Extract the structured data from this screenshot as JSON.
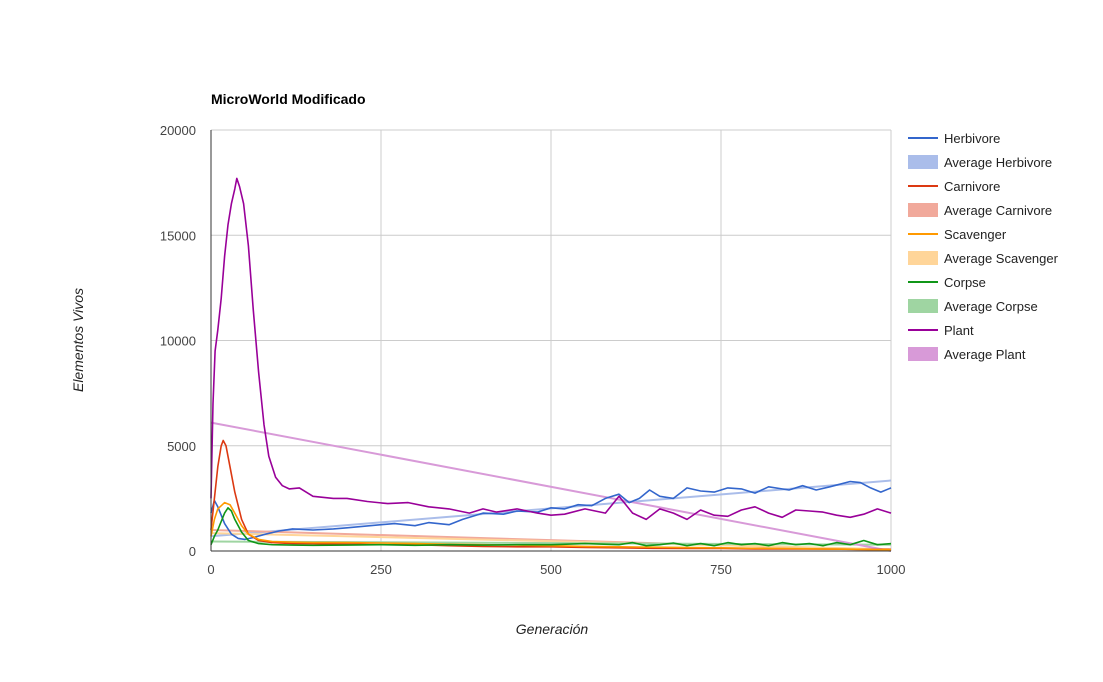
{
  "chart_data": {
    "type": "line",
    "title": "MicroWorld Modificado",
    "xlabel": "Generación",
    "ylabel": "Elementos Vivos",
    "xlim": [
      0,
      1000
    ],
    "ylim": [
      0,
      20000
    ],
    "x_ticks": [
      "0",
      "250",
      "500",
      "750",
      "1000"
    ],
    "y_ticks": [
      "0",
      "5000",
      "10000",
      "15000",
      "20000"
    ],
    "grid": true,
    "legend_position": "right",
    "series": [
      {
        "name": "Herbivore",
        "kind": "line",
        "color": "#3366cc",
        "points": [
          [
            0,
            1800
          ],
          [
            5,
            2400
          ],
          [
            10,
            2100
          ],
          [
            20,
            1300
          ],
          [
            30,
            800
          ],
          [
            40,
            600
          ],
          [
            50,
            550
          ],
          [
            60,
            620
          ],
          [
            80,
            800
          ],
          [
            100,
            950
          ],
          [
            120,
            1050
          ],
          [
            150,
            1000
          ],
          [
            180,
            1050
          ],
          [
            200,
            1100
          ],
          [
            250,
            1250
          ],
          [
            270,
            1300
          ],
          [
            300,
            1200
          ],
          [
            320,
            1350
          ],
          [
            350,
            1250
          ],
          [
            370,
            1500
          ],
          [
            400,
            1800
          ],
          [
            430,
            1750
          ],
          [
            450,
            1900
          ],
          [
            480,
            1850
          ],
          [
            500,
            2050
          ],
          [
            520,
            2000
          ],
          [
            540,
            2200
          ],
          [
            560,
            2150
          ],
          [
            580,
            2500
          ],
          [
            600,
            2700
          ],
          [
            615,
            2300
          ],
          [
            630,
            2500
          ],
          [
            645,
            2900
          ],
          [
            660,
            2600
          ],
          [
            680,
            2500
          ],
          [
            700,
            3000
          ],
          [
            720,
            2850
          ],
          [
            740,
            2800
          ],
          [
            760,
            3000
          ],
          [
            780,
            2950
          ],
          [
            790,
            2850
          ],
          [
            800,
            2750
          ],
          [
            820,
            3050
          ],
          [
            850,
            2900
          ],
          [
            870,
            3100
          ],
          [
            890,
            2900
          ],
          [
            910,
            3050
          ],
          [
            940,
            3300
          ],
          [
            955,
            3250
          ],
          [
            970,
            3000
          ],
          [
            985,
            2800
          ],
          [
            1000,
            3000
          ]
        ]
      },
      {
        "name": "Average Herbivore",
        "kind": "avg",
        "color": "#aabdea",
        "points": [
          [
            0,
            700
          ],
          [
            1000,
            3350
          ]
        ]
      },
      {
        "name": "Carnivore",
        "kind": "line",
        "color": "#dc3912",
        "points": [
          [
            0,
            1000
          ],
          [
            5,
            2500
          ],
          [
            10,
            4000
          ],
          [
            15,
            5000
          ],
          [
            18,
            5250
          ],
          [
            22,
            5000
          ],
          [
            28,
            4000
          ],
          [
            35,
            2800
          ],
          [
            45,
            1500
          ],
          [
            55,
            800
          ],
          [
            70,
            500
          ],
          [
            90,
            400
          ],
          [
            120,
            350
          ],
          [
            150,
            350
          ],
          [
            200,
            330
          ],
          [
            250,
            300
          ],
          [
            300,
            300
          ],
          [
            350,
            250
          ],
          [
            400,
            220
          ],
          [
            450,
            200
          ],
          [
            500,
            200
          ],
          [
            550,
            170
          ],
          [
            600,
            150
          ],
          [
            650,
            130
          ],
          [
            700,
            120
          ],
          [
            750,
            120
          ],
          [
            800,
            100
          ],
          [
            850,
            100
          ],
          [
            900,
            90
          ],
          [
            950,
            80
          ],
          [
            1000,
            80
          ]
        ]
      },
      {
        "name": "Average Carnivore",
        "kind": "avg",
        "color": "#f1a99b",
        "points": [
          [
            0,
            1000
          ],
          [
            1000,
            40
          ]
        ]
      },
      {
        "name": "Scavenger",
        "kind": "line",
        "color": "#ff9900",
        "points": [
          [
            0,
            700
          ],
          [
            5,
            1500
          ],
          [
            10,
            2000
          ],
          [
            20,
            2300
          ],
          [
            28,
            2200
          ],
          [
            35,
            1800
          ],
          [
            45,
            1200
          ],
          [
            55,
            800
          ],
          [
            70,
            550
          ],
          [
            90,
            450
          ],
          [
            120,
            420
          ],
          [
            150,
            400
          ],
          [
            200,
            400
          ],
          [
            250,
            380
          ],
          [
            300,
            350
          ],
          [
            350,
            320
          ],
          [
            400,
            300
          ],
          [
            450,
            280
          ],
          [
            500,
            250
          ],
          [
            550,
            220
          ],
          [
            600,
            200
          ],
          [
            650,
            180
          ],
          [
            700,
            160
          ],
          [
            750,
            150
          ],
          [
            800,
            130
          ],
          [
            850,
            120
          ],
          [
            900,
            100
          ],
          [
            950,
            80
          ],
          [
            1000,
            60
          ]
        ]
      },
      {
        "name": "Average Scavenger",
        "kind": "avg",
        "color": "#ffd599",
        "points": [
          [
            0,
            850
          ],
          [
            1000,
            80
          ]
        ]
      },
      {
        "name": "Corpse",
        "kind": "line",
        "color": "#109618",
        "points": [
          [
            0,
            300
          ],
          [
            5,
            700
          ],
          [
            10,
            1000
          ],
          [
            15,
            1400
          ],
          [
            20,
            1800
          ],
          [
            25,
            2050
          ],
          [
            30,
            1900
          ],
          [
            35,
            1500
          ],
          [
            45,
            900
          ],
          [
            55,
            500
          ],
          [
            70,
            350
          ],
          [
            90,
            300
          ],
          [
            120,
            280
          ],
          [
            150,
            270
          ],
          [
            200,
            280
          ],
          [
            250,
            300
          ],
          [
            300,
            270
          ],
          [
            350,
            300
          ],
          [
            400,
            280
          ],
          [
            450,
            300
          ],
          [
            500,
            300
          ],
          [
            550,
            350
          ],
          [
            600,
            300
          ],
          [
            620,
            400
          ],
          [
            640,
            250
          ],
          [
            660,
            300
          ],
          [
            680,
            380
          ],
          [
            700,
            250
          ],
          [
            720,
            350
          ],
          [
            740,
            250
          ],
          [
            760,
            400
          ],
          [
            780,
            300
          ],
          [
            800,
            350
          ],
          [
            820,
            250
          ],
          [
            840,
            400
          ],
          [
            860,
            300
          ],
          [
            880,
            350
          ],
          [
            900,
            250
          ],
          [
            920,
            400
          ],
          [
            940,
            300
          ],
          [
            960,
            500
          ],
          [
            980,
            300
          ],
          [
            1000,
            350
          ]
        ]
      },
      {
        "name": "Average Corpse",
        "kind": "avg",
        "color": "#9fd5a2",
        "points": [
          [
            0,
            450
          ],
          [
            1000,
            300
          ]
        ]
      },
      {
        "name": "Plant",
        "kind": "line",
        "color": "#990099",
        "points": [
          [
            0,
            2500
          ],
          [
            3,
            7000
          ],
          [
            6,
            9500
          ],
          [
            10,
            10500
          ],
          [
            15,
            12000
          ],
          [
            20,
            14000
          ],
          [
            25,
            15500
          ],
          [
            30,
            16500
          ],
          [
            35,
            17200
          ],
          [
            38,
            17700
          ],
          [
            42,
            17300
          ],
          [
            48,
            16500
          ],
          [
            55,
            14500
          ],
          [
            62,
            11500
          ],
          [
            70,
            8500
          ],
          [
            78,
            6000
          ],
          [
            85,
            4500
          ],
          [
            95,
            3500
          ],
          [
            105,
            3100
          ],
          [
            115,
            2950
          ],
          [
            130,
            3000
          ],
          [
            150,
            2600
          ],
          [
            180,
            2500
          ],
          [
            200,
            2500
          ],
          [
            230,
            2350
          ],
          [
            260,
            2250
          ],
          [
            290,
            2300
          ],
          [
            320,
            2100
          ],
          [
            350,
            2000
          ],
          [
            380,
            1800
          ],
          [
            400,
            2000
          ],
          [
            420,
            1850
          ],
          [
            450,
            2000
          ],
          [
            480,
            1800
          ],
          [
            500,
            1700
          ],
          [
            520,
            1750
          ],
          [
            550,
            2000
          ],
          [
            580,
            1800
          ],
          [
            600,
            2600
          ],
          [
            620,
            1800
          ],
          [
            640,
            1500
          ],
          [
            660,
            2000
          ],
          [
            680,
            1800
          ],
          [
            700,
            1500
          ],
          [
            720,
            1950
          ],
          [
            740,
            1700
          ],
          [
            760,
            1650
          ],
          [
            780,
            1950
          ],
          [
            800,
            2100
          ],
          [
            820,
            1800
          ],
          [
            840,
            1600
          ],
          [
            860,
            1950
          ],
          [
            880,
            1900
          ],
          [
            900,
            1850
          ],
          [
            920,
            1700
          ],
          [
            940,
            1600
          ],
          [
            960,
            1750
          ],
          [
            980,
            2000
          ],
          [
            1000,
            1800
          ]
        ]
      },
      {
        "name": "Average Plant",
        "kind": "avg",
        "color": "#d89ad8",
        "points": [
          [
            0,
            6100
          ],
          [
            1000,
            0
          ]
        ]
      }
    ]
  }
}
